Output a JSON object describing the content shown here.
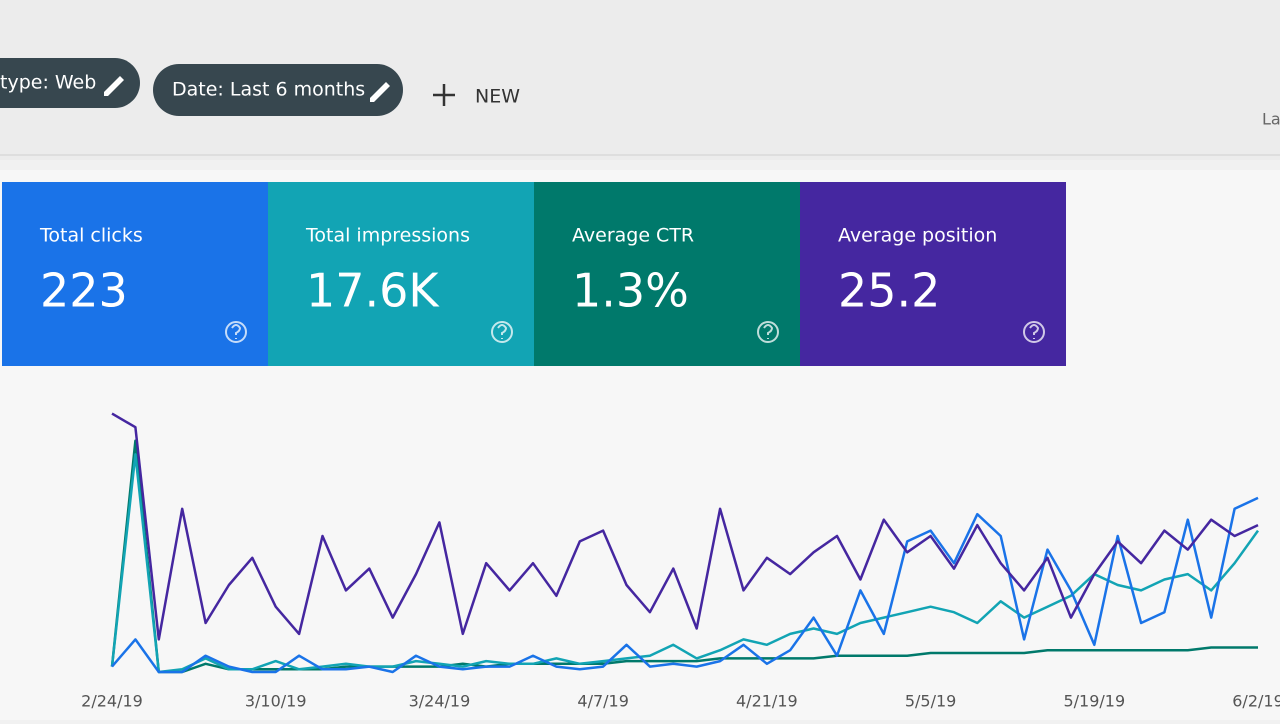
{
  "toolbar": {
    "chips": [
      "type: Web",
      "Date: Last 6 months"
    ],
    "new_button": "NEW",
    "right_text": "La"
  },
  "cards": [
    {
      "label": "Total clicks",
      "value": "223",
      "color": "#1a73e8"
    },
    {
      "label": "Total impressions",
      "value": "17.6K",
      "color": "#12a4b4"
    },
    {
      "label": "Average CTR",
      "value": "1.3%",
      "color": "#00796b"
    },
    {
      "label": "Average position",
      "value": "25.2",
      "color": "#4527a0"
    }
  ],
  "chart_data": {
    "type": "line",
    "categories": [
      "2/24/19",
      null,
      null,
      null,
      null,
      null,
      null,
      "3/10/19",
      null,
      null,
      null,
      null,
      null,
      null,
      "3/24/19",
      null,
      null,
      null,
      null,
      null,
      null,
      "4/7/19",
      null,
      null,
      null,
      null,
      null,
      null,
      "4/21/19",
      null,
      null,
      null,
      null,
      null,
      null,
      "5/5/19",
      null,
      null,
      null,
      null,
      null,
      null,
      "5/19/19",
      null,
      null,
      null,
      null,
      null,
      null,
      "6/2/19"
    ],
    "ylim": [
      0,
      100
    ],
    "series": [
      {
        "color": "#00796b",
        "values": [
          2,
          85,
          0,
          0,
          3,
          1,
          1,
          1,
          1,
          1,
          2,
          2,
          2,
          2,
          2,
          3,
          2,
          3,
          3,
          3,
          3,
          3,
          4,
          4,
          4,
          4,
          5,
          5,
          5,
          5,
          5,
          6,
          6,
          6,
          6,
          7,
          7,
          7,
          7,
          7,
          8,
          8,
          8,
          8,
          8,
          8,
          8,
          9,
          9,
          9
        ]
      },
      {
        "color": "#12a4b4",
        "values": [
          2,
          80,
          0,
          1,
          5,
          1,
          1,
          4,
          1,
          2,
          3,
          2,
          2,
          4,
          3,
          2,
          4,
          3,
          3,
          5,
          3,
          4,
          5,
          6,
          10,
          5,
          8,
          12,
          10,
          14,
          16,
          14,
          18,
          20,
          22,
          24,
          22,
          18,
          26,
          20,
          24,
          28,
          36,
          32,
          30,
          34,
          36,
          30,
          40,
          52
        ]
      },
      {
        "color": "#1a73e8",
        "values": [
          2,
          12,
          0,
          0,
          6,
          2,
          0,
          0,
          6,
          1,
          1,
          2,
          0,
          6,
          2,
          1,
          2,
          2,
          6,
          2,
          1,
          2,
          10,
          2,
          3,
          2,
          4,
          10,
          3,
          8,
          20,
          6,
          30,
          14,
          48,
          52,
          40,
          58,
          50,
          12,
          45,
          30,
          10,
          50,
          18,
          22,
          56,
          20,
          60,
          64
        ]
      },
      {
        "color": "#4527a0",
        "values": [
          95,
          90,
          12,
          60,
          18,
          32,
          42,
          24,
          14,
          50,
          30,
          38,
          20,
          36,
          55,
          14,
          40,
          30,
          40,
          28,
          48,
          52,
          32,
          22,
          38,
          16,
          60,
          30,
          42,
          36,
          44,
          50,
          34,
          56,
          44,
          50,
          38,
          54,
          40,
          30,
          42,
          20,
          36,
          48,
          40,
          52,
          45,
          56,
          50,
          54
        ]
      }
    ]
  }
}
